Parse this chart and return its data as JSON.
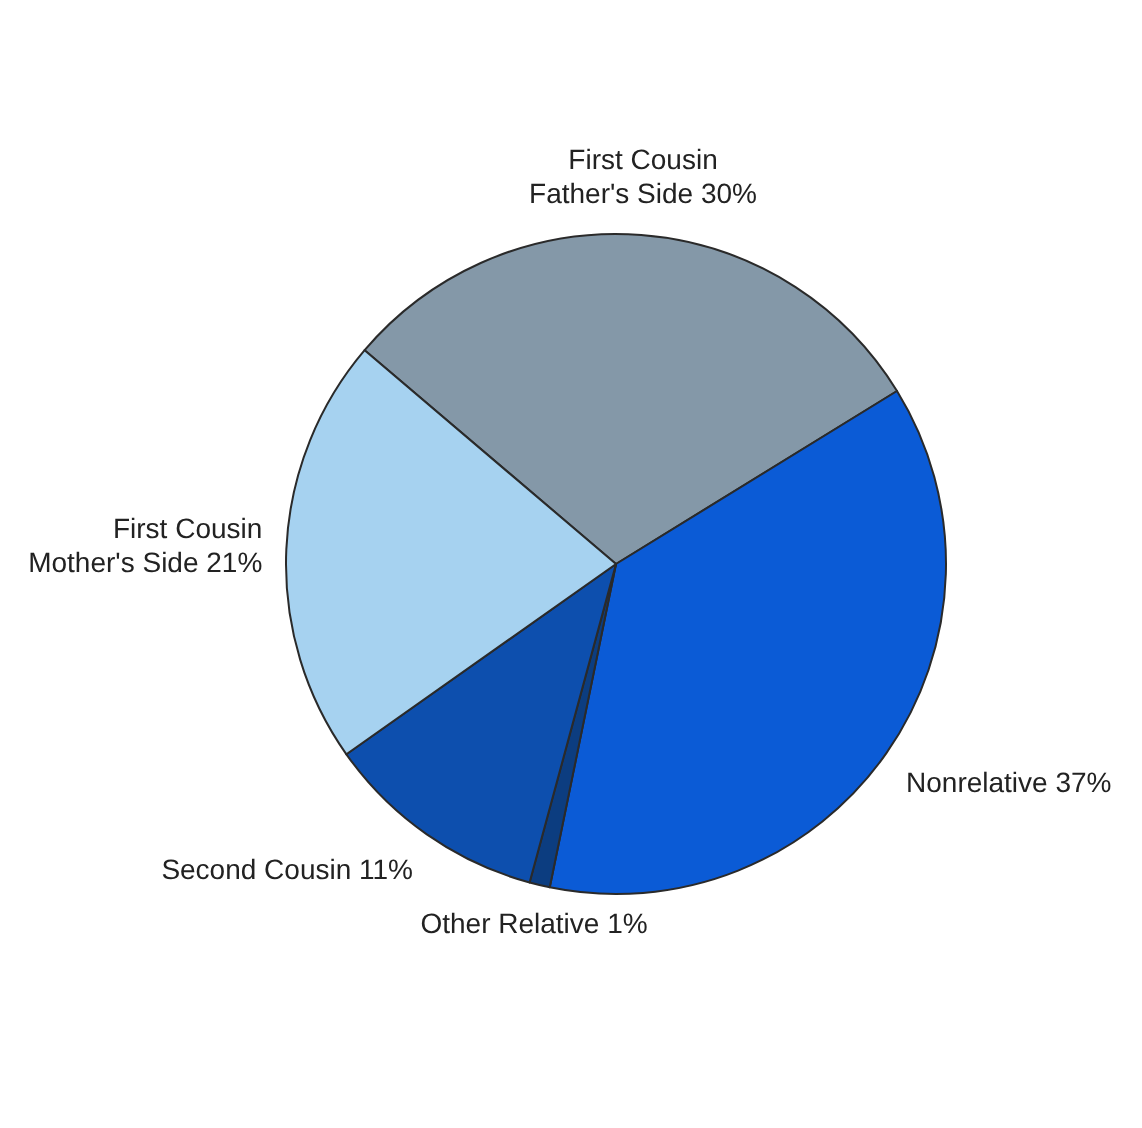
{
  "chart_data": {
    "type": "pie",
    "categories": [
      "First Cousin Father's Side",
      "Nonrelative",
      "Other Relative",
      "Second Cousin",
      "First Cousin Mother's Side"
    ],
    "values": [
      30,
      37,
      1,
      11,
      21
    ],
    "colors": [
      "#8498a8",
      "#0b5bd6",
      "#0c3d80",
      "#0d4fae",
      "#a6d2f0"
    ],
    "value_labels": [
      "30%",
      "37%",
      "1%",
      "11%",
      "21%"
    ]
  }
}
